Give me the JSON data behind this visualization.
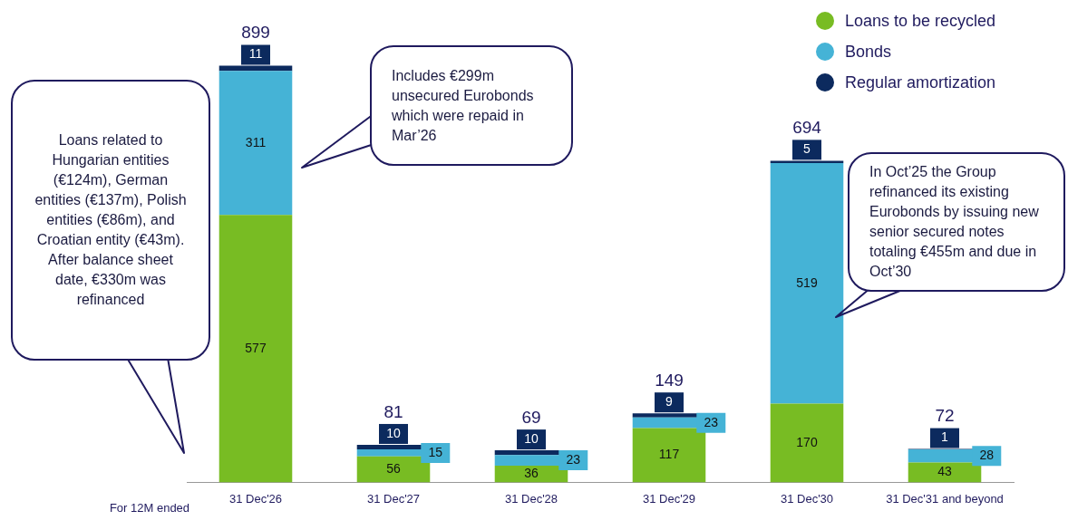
{
  "chart_data": {
    "type": "bar",
    "stacked": true,
    "categories": [
      "31 Dec'26",
      "31 Dec'27",
      "31 Dec'28",
      "31 Dec'29",
      "31 Dec'30",
      "31 Dec'31 and beyond"
    ],
    "series": [
      {
        "name": "Loans to be recycled",
        "color": "#78bc23",
        "values": [
          577,
          56,
          36,
          117,
          170,
          43
        ]
      },
      {
        "name": "Bonds",
        "color": "#45b3d6",
        "values": [
          311,
          15,
          23,
          23,
          519,
          28
        ]
      },
      {
        "name": "Regular amortization",
        "color": "#0c2a5e",
        "values": [
          11,
          10,
          10,
          9,
          5,
          1
        ]
      }
    ],
    "data_labels": true,
    "totals": [
      "899",
      "81",
      "69",
      "149",
      "694",
      "72"
    ],
    "legend": "top right",
    "grid": false,
    "tick_labels": "x",
    "annotations": [
      "Loans related to Hungarian entities (€124m), German entities (€137m), Polish entities (€86m), and Croatian entity (€43m). After balance sheet date, €330m was refinanced",
      "Includes €299m unsecured Eurobonds which were repaid in Mar’26",
      "In Oct’25 the Group refinanced its existing Eurobonds by issuing new senior secured notes totaling €455m and due in Oct’30",
      "For 12M ended"
    ]
  }
}
